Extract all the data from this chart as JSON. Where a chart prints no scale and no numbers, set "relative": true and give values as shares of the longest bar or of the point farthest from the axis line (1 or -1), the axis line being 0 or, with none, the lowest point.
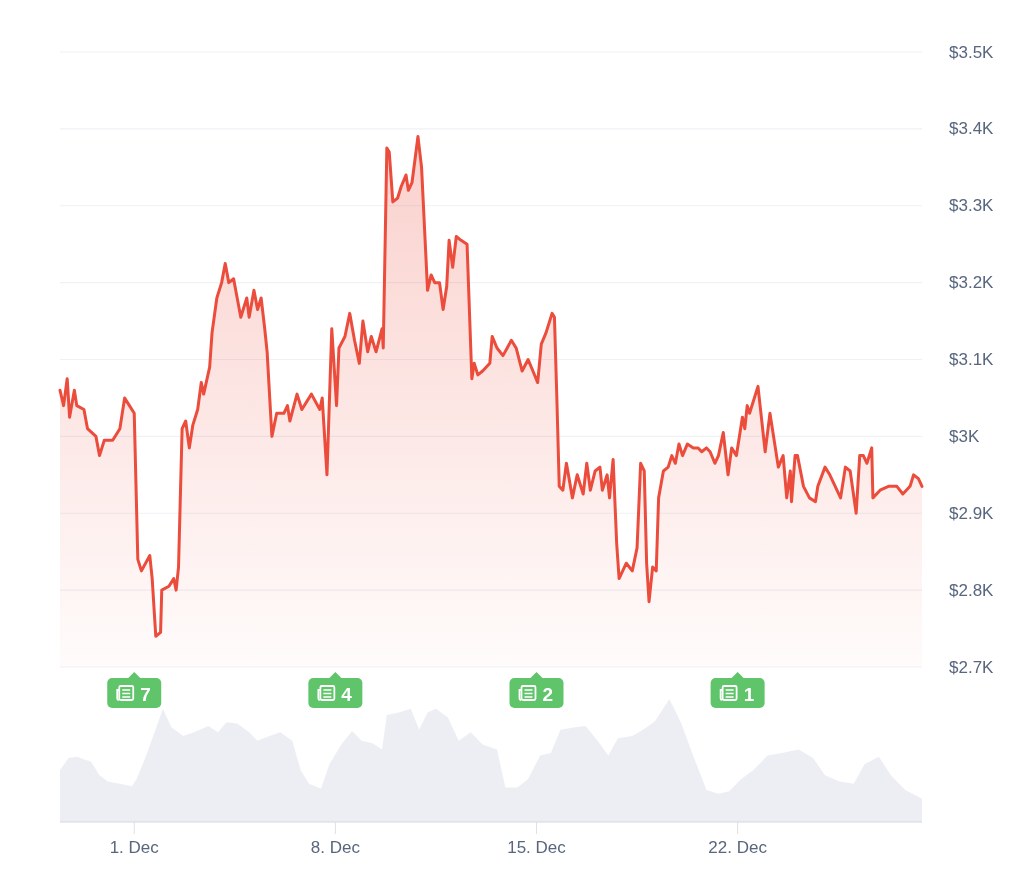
{
  "chart_data": [
    {
      "type": "area",
      "color": "#eb4c3c",
      "x": [
        "--11-28T10:00",
        "--11-28T13:00",
        "--11-28T16:00",
        "--11-28T18:00",
        "--11-28T22:00",
        "--11-29T00:00",
        "--11-29T06:00",
        "--11-29T09:00",
        "--11-29T16:00",
        "--11-29T19:00",
        "--11-29T23:00",
        "--11-30T06:00",
        "--11-30T12:00",
        "--11-30T16:00",
        "--11-30T20:00",
        "--12-01T00:00",
        "--12-01T03:00",
        "--12-01T06:00",
        "--12-01T13:00",
        "--12-01T15:00",
        "--12-01T18:00",
        "--12-01T22:00",
        "--12-01T23:00",
        "--12-02T05:00",
        "--12-02T09:00",
        "--12-02T11:00",
        "--12-02T13:00",
        "--12-02T16:00",
        "--12-02T19:00",
        "--12-02T22:00",
        "--12-03T01:00",
        "--12-03T05:00",
        "--12-03T08:00",
        "--12-03T10:00",
        "--12-03T15:00",
        "--12-03T17:00",
        "--12-03T21:00",
        "--12-04T01:00",
        "--12-04T04:00",
        "--12-04T07:00",
        "--12-04T11:00",
        "--12-04T14:00",
        "--12-04T17:00",
        "--12-04T22:00",
        "--12-05T00:00",
        "--12-05T04:00",
        "--12-05T07:00",
        "--12-05T10:00",
        "--12-05T13:00",
        "--12-05T15:00",
        "--12-05T19:00",
        "--12-05T23:00",
        "--12-06T05:00",
        "--12-06T08:00",
        "--12-06T10:00",
        "--12-06T16:00",
        "--12-06T20:00",
        "--12-07T04:00",
        "--12-07T11:00",
        "--12-07T13:00",
        "--12-07T17:00",
        "--12-07T21:00",
        "--12-08T01:00",
        "--12-08T03:00",
        "--12-08T08:00",
        "--12-08T12:00",
        "--12-08T16:00",
        "--12-08T20:00",
        "--12-08T23:00",
        "--12-09T03:00",
        "--12-09T06:00",
        "--12-09T10:00",
        "--12-09T15:00",
        "--12-09T16:00",
        "--12-09T19:00",
        "--12-09T21:00",
        "--12-10T00:00",
        "--12-10T04:00",
        "--12-10T07:00",
        "--12-10T11:00",
        "--12-10T13:00",
        "--12-10T16:00",
        "--12-10T21:00",
        "--12-11T00:00",
        "--12-11T05:00",
        "--12-11T08:00",
        "--12-11T11:00",
        "--12-11T15:00",
        "--12-11T18:00",
        "--12-11T21:00",
        "--12-11T23:00",
        "--12-12T02:00",
        "--12-12T05:00",
        "--12-12T09:00",
        "--12-12T14:00",
        "--12-12T18:00",
        "--12-12T20:00",
        "--12-12T23:00",
        "--12-13T03:00",
        "--12-13T09:00",
        "--12-13T11:00",
        "--12-13T15:00",
        "--12-13T20:00",
        "--12-14T03:00",
        "--12-14T07:00",
        "--12-14T12:00",
        "--12-14T17:00",
        "--12-14T21:00",
        "--12-15T01:00",
        "--12-15T04:00",
        "--12-15T08:00",
        "--12-15T13:00",
        "--12-15T15:00",
        "--12-15T17:00",
        "--12-15T19:00",
        "--12-15T22:00",
        "--12-16T01:00",
        "--12-16T06:00",
        "--12-16T10:00",
        "--12-16T15:00",
        "--12-16T18:00",
        "--12-16T21:00",
        "--12-17T01:00",
        "--12-17T05:00",
        "--12-17T07:00",
        "--12-17T11:00",
        "--12-17T13:00",
        "--12-17T16:00",
        "--12-17T19:00",
        "--12-17T21:00",
        "--12-18T03:00",
        "--12-18T08:00",
        "--12-18T12:00",
        "--12-18T15:00",
        "--12-18T18:00",
        "--12-18T20:00",
        "--12-18T22:00",
        "--12-19T01:00",
        "--12-19T04:00",
        "--12-19T06:00",
        "--12-19T10:00",
        "--12-19T14:00",
        "--12-19T17:00",
        "--12-19T20:00",
        "--12-19T23:00",
        "--12-20T02:00",
        "--12-20T06:00",
        "--12-20T11:00",
        "--12-20T15:00",
        "--12-20T18:00",
        "--12-20T22:00",
        "--12-21T01:00",
        "--12-21T05:00",
        "--12-21T08:00",
        "--12-21T12:00",
        "--12-21T16:00",
        "--12-21T19:00",
        "--12-21T23:00",
        "--12-22T04:00",
        "--12-22T06:00",
        "--12-22T08:00",
        "--12-22T10:00",
        "--12-22T17:00",
        "--12-22T23:00",
        "--12-23T03:00",
        "--12-23T10:00",
        "--12-23T14:00",
        "--12-23T17:00",
        "--12-23T20:00",
        "--12-23T21:00",
        "--12-24T00:00",
        "--12-24T02:00",
        "--12-24T07:00",
        "--12-24T12:00",
        "--12-24T17:00",
        "--12-24T19:00",
        "--12-25T01:00",
        "--12-25T05:00",
        "--12-25T14:00",
        "--12-25T18:00",
        "--12-25T22:00",
        "--12-26T03:00",
        "--12-26T06:00",
        "--12-26T09:00",
        "--12-26T12:00",
        "--12-26T16:00",
        "--12-26T17:00",
        "--12-26T23:00",
        "--12-27T06:00",
        "--12-27T13:00",
        "--12-27T18:00",
        "--12-28T00:00",
        "--12-28T03:00",
        "--12-28T07:00",
        "--12-28T10:00"
      ],
      "values": [
        3060,
        3040,
        3075,
        3025,
        3060,
        3040,
        3035,
        3010,
        3000,
        2975,
        2995,
        2995,
        3010,
        3050,
        3040,
        3030,
        2840,
        2825,
        2845,
        2815,
        2740,
        2745,
        2800,
        2805,
        2815,
        2800,
        2830,
        3010,
        3020,
        2985,
        3015,
        3035,
        3070,
        3055,
        3090,
        3135,
        3180,
        3200,
        3225,
        3200,
        3205,
        3180,
        3155,
        3180,
        3155,
        3190,
        3165,
        3180,
        3140,
        3110,
        3000,
        3030,
        3030,
        3040,
        3020,
        3055,
        3035,
        3055,
        3035,
        3050,
        2950,
        3140,
        3040,
        3115,
        3130,
        3160,
        3125,
        3095,
        3150,
        3110,
        3130,
        3110,
        3140,
        3115,
        3375,
        3370,
        3305,
        3310,
        3325,
        3340,
        3320,
        3330,
        3390,
        3350,
        3190,
        3210,
        3200,
        3200,
        3165,
        3195,
        3255,
        3220,
        3260,
        3255,
        3250,
        3075,
        3095,
        3080,
        3085,
        3095,
        3130,
        3115,
        3105,
        3125,
        3115,
        3085,
        3100,
        3085,
        3070,
        3120,
        3135,
        3160,
        3155,
        3050,
        2935,
        2930,
        2965,
        2920,
        2950,
        2925,
        2965,
        2930,
        2955,
        2960,
        2930,
        2950,
        2920,
        2970,
        2860,
        2815,
        2835,
        2825,
        2855,
        2965,
        2955,
        2835,
        2785,
        2830,
        2825,
        2920,
        2955,
        2960,
        2975,
        2965,
        2990,
        2975,
        2990,
        2985,
        2985,
        2980,
        2985,
        2980,
        2965,
        2975,
        3005,
        2950,
        2985,
        2975,
        3025,
        3010,
        3040,
        3030,
        3065,
        2980,
        3030,
        2960,
        2975,
        2920,
        2955,
        2915,
        2975,
        2975,
        2935,
        2920,
        2915,
        2935,
        2960,
        2950,
        2920,
        2960,
        2955,
        2900,
        2975,
        2975,
        2965,
        2985,
        2920,
        2930,
        2935,
        2935,
        2925,
        2935,
        2950,
        2945,
        2935
      ],
      "xlim": [
        "--11-28T10:00",
        "--12-28T10:00"
      ],
      "ylim": [
        2700,
        3500
      ],
      "yticks": [
        {
          "value": 2700,
          "label": "$2.7K"
        },
        {
          "value": 2800,
          "label": "$2.8K"
        },
        {
          "value": 2900,
          "label": "$2.9K"
        },
        {
          "value": 3000,
          "label": "$3K"
        },
        {
          "value": 3100,
          "label": "$3.1K"
        },
        {
          "value": 3200,
          "label": "$3.2K"
        },
        {
          "value": 3300,
          "label": "$3.3K"
        },
        {
          "value": 3400,
          "label": "$3.4K"
        },
        {
          "value": 3500,
          "label": "$3.5K"
        }
      ],
      "grid": "y",
      "tick_labels": "y",
      "annotations": [
        "7",
        "4",
        "2",
        "1"
      ]
    },
    {
      "type": "area",
      "relative": true,
      "color": "#eceef3",
      "x": [
        "--11-28T10:00",
        "--11-28T17:00",
        "--11-29T00:00",
        "--11-29T12:00",
        "--11-29T19:00",
        "--11-30T02:00",
        "--11-30T12:00",
        "--11-30T22:00",
        "--12-01T02:00",
        "--12-01T10:00",
        "--12-01T17:00",
        "--12-02T00:00",
        "--12-02T07:00",
        "--12-02T17:00",
        "--12-03T02:00",
        "--12-03T14:00",
        "--12-03T22:00",
        "--12-04T05:00",
        "--12-04T14:00",
        "--12-05T00:00",
        "--12-05T07:00",
        "--12-05T17:00",
        "--12-06T02:00",
        "--12-06T12:00",
        "--12-06T19:00",
        "--12-07T02:00",
        "--12-07T12:00",
        "--12-07T19:00",
        "--12-08T05:00",
        "--12-08T14:00",
        "--12-08T22:00",
        "--12-09T07:00",
        "--12-09T15:00",
        "--12-09T19:00",
        "--12-10T05:00",
        "--12-10T15:00",
        "--12-10T22:00",
        "--12-11T05:00",
        "--12-11T12:00",
        "--12-11T22:00",
        "--12-12T07:00",
        "--12-12T17:00",
        "--12-13T03:00",
        "--12-13T15:00",
        "--12-13T22:00",
        "--12-14T08:00",
        "--12-14T17:00",
        "--12-15T03:00",
        "--12-15T12:00",
        "--12-15T20:00",
        "--12-16T08:00",
        "--12-16T17:00",
        "--12-17T03:00",
        "--12-17T12:00",
        "--12-17T20:00",
        "--12-18T08:00",
        "--12-18T17:00",
        "--12-19T03:00",
        "--12-19T15:00",
        "--12-20T01:00",
        "--12-20T10:00",
        "--12-20T22:00",
        "--12-21T08:00",
        "--12-21T17:00",
        "--12-22T03:00",
        "--12-22T13:00",
        "--12-23T01:00",
        "--12-23T13:00",
        "--12-24T03:00",
        "--12-24T15:00",
        "--12-25T01:00",
        "--12-25T13:00",
        "--12-26T01:00",
        "--12-26T10:00",
        "--12-26T22:00",
        "--12-27T08:00",
        "--12-27T20:00",
        "--12-28T06:00",
        "--12-28T10:00"
      ],
      "values": [
        0.42,
        0.52,
        0.53,
        0.49,
        0.38,
        0.33,
        0.31,
        0.29,
        0.35,
        0.54,
        0.73,
        0.92,
        0.77,
        0.7,
        0.73,
        0.78,
        0.73,
        0.81,
        0.8,
        0.73,
        0.66,
        0.7,
        0.73,
        0.66,
        0.42,
        0.31,
        0.27,
        0.47,
        0.63,
        0.74,
        0.66,
        0.64,
        0.59,
        0.87,
        0.89,
        0.92,
        0.75,
        0.89,
        0.92,
        0.85,
        0.66,
        0.73,
        0.63,
        0.59,
        0.28,
        0.28,
        0.35,
        0.54,
        0.56,
        0.75,
        0.77,
        0.78,
        0.66,
        0.54,
        0.68,
        0.7,
        0.75,
        0.82,
        1,
        0.8,
        0.56,
        0.26,
        0.23,
        0.25,
        0.35,
        0.42,
        0.54,
        0.56,
        0.59,
        0.52,
        0.38,
        0.33,
        0.31,
        0.47,
        0.53,
        0.38,
        0.26,
        0.21,
        0.19
      ],
      "xlim": [
        "--11-28T10:00",
        "--12-28T10:00"
      ],
      "xticks": [
        {
          "value": "--12-01",
          "label": "1. Dec"
        },
        {
          "value": "--12-08",
          "label": "8. Dec"
        },
        {
          "value": "--12-15",
          "label": "15. Dec"
        },
        {
          "value": "--12-22",
          "label": "22. Dec"
        }
      ],
      "tick_labels": "x"
    }
  ]
}
